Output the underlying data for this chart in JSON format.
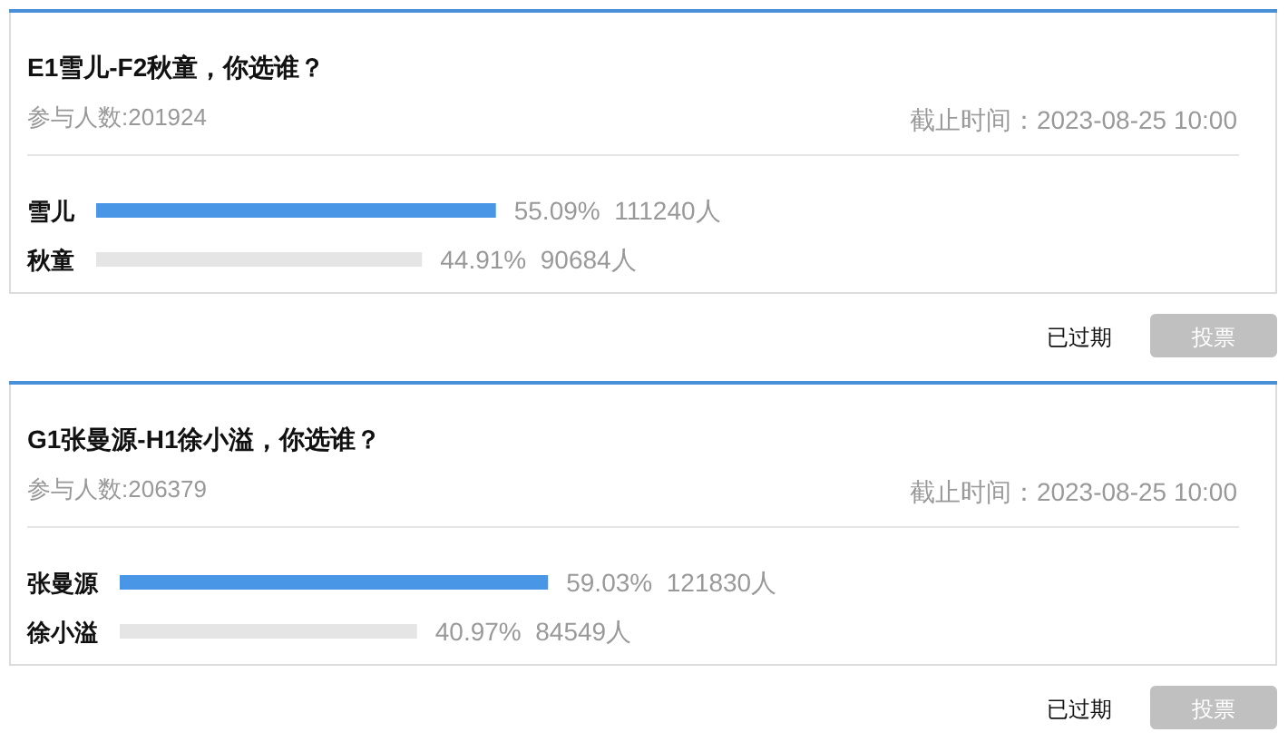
{
  "chart_data": [
    {
      "type": "bar",
      "orientation": "horizontal",
      "title": "E1雪儿-F2秋童，你选谁？",
      "subtitle": "参与人数:201924",
      "categories": [
        "雪儿",
        "秋童"
      ],
      "values": [
        55.09,
        44.91
      ],
      "colors": [
        "#4a96e6",
        "#e5e5e5"
      ],
      "value_labels": [
        "55.09%  111240人",
        "44.91%  90684人"
      ],
      "annotations": [
        "截止时间：2023-08-25 10:00",
        "已过期",
        "投票"
      ]
    },
    {
      "type": "bar",
      "orientation": "horizontal",
      "title": "G1张曼源-H1徐小溢，你选谁？",
      "subtitle": "参与人数:206379",
      "categories": [
        "张曼源",
        "徐小溢"
      ],
      "values": [
        59.03,
        40.97
      ],
      "colors": [
        "#4a96e6",
        "#e5e5e5"
      ],
      "value_labels": [
        "59.03%  121830人",
        "40.97%  84549人"
      ],
      "annotations": [
        "截止时间：2023-08-25 10:00",
        "已过期",
        "投票"
      ]
    }
  ]
}
